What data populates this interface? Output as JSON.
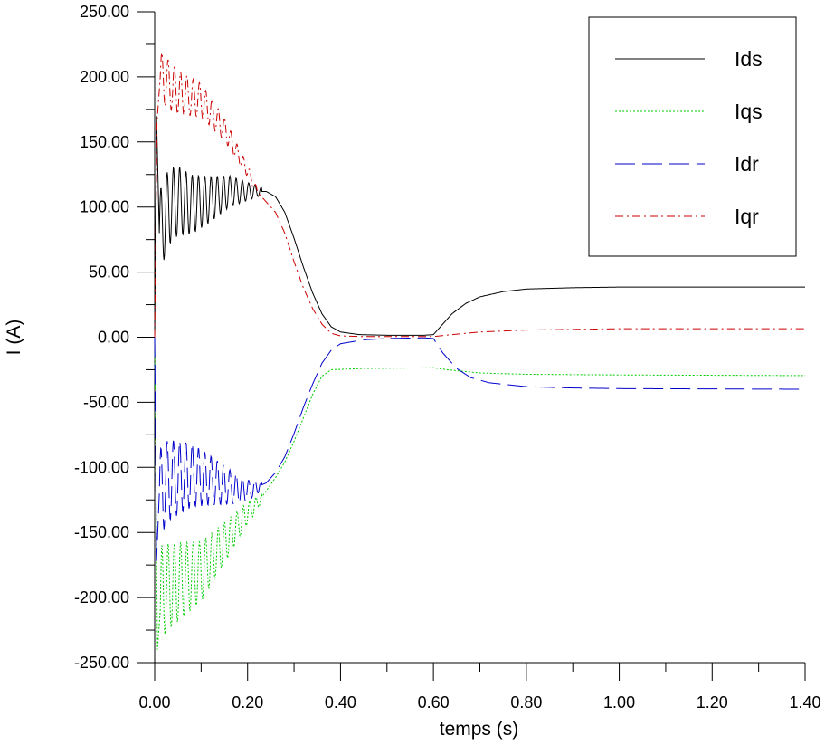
{
  "chart_data": {
    "type": "line",
    "xlabel": "temps (s)",
    "ylabel": "I (A)",
    "xlim": [
      0,
      1.4
    ],
    "ylim": [
      -250,
      250
    ],
    "grid": false,
    "legend_position": "top-right",
    "x_ticks": [
      "0.00",
      "0.20",
      "0.40",
      "0.60",
      "0.80",
      "1.00",
      "1.20",
      "1.40"
    ],
    "y_ticks": [
      "250.00",
      "200.00",
      "150.00",
      "100.00",
      "50.00",
      "0.00",
      "-50.00",
      "-100.00",
      "-150.00",
      "-200.00",
      "-250.00"
    ],
    "series": [
      {
        "name": "Ids",
        "color": "#000000",
        "dash": "solid",
        "points": [
          [
            0,
            0
          ],
          [
            0.004,
            170
          ],
          [
            0.01,
            80
          ],
          [
            0.03,
            100
          ],
          [
            0.05,
            105
          ],
          [
            0.08,
            102
          ],
          [
            0.12,
            106
          ],
          [
            0.16,
            112
          ],
          [
            0.2,
            112
          ],
          [
            0.24,
            112
          ],
          [
            0.26,
            108
          ],
          [
            0.28,
            96
          ],
          [
            0.3,
            76
          ],
          [
            0.32,
            54
          ],
          [
            0.34,
            34
          ],
          [
            0.36,
            18
          ],
          [
            0.38,
            8
          ],
          [
            0.4,
            4
          ],
          [
            0.44,
            2
          ],
          [
            0.5,
            1.5
          ],
          [
            0.58,
            1.5
          ],
          [
            0.6,
            2
          ],
          [
            0.62,
            10
          ],
          [
            0.64,
            18
          ],
          [
            0.67,
            26
          ],
          [
            0.7,
            31
          ],
          [
            0.75,
            35
          ],
          [
            0.8,
            37
          ],
          [
            0.9,
            38
          ],
          [
            1.0,
            38.5
          ],
          [
            1.4,
            38.5
          ]
        ],
        "oscillation": {
          "from": 0.01,
          "to": 0.23,
          "period": 0.0135,
          "amp_start": 32,
          "amp_end": 3
        }
      },
      {
        "name": "Iqs",
        "color": "#00cc00",
        "dash": "dotted",
        "points": [
          [
            0,
            0
          ],
          [
            0.006,
            -240
          ],
          [
            0.015,
            -195
          ],
          [
            0.05,
            -188
          ],
          [
            0.1,
            -180
          ],
          [
            0.15,
            -158
          ],
          [
            0.2,
            -135
          ],
          [
            0.22,
            -128
          ],
          [
            0.24,
            -118
          ],
          [
            0.26,
            -108
          ],
          [
            0.28,
            -96
          ],
          [
            0.3,
            -80
          ],
          [
            0.32,
            -62
          ],
          [
            0.34,
            -44
          ],
          [
            0.36,
            -30
          ],
          [
            0.38,
            -25
          ],
          [
            0.45,
            -24
          ],
          [
            0.6,
            -23.5
          ],
          [
            0.63,
            -25
          ],
          [
            0.7,
            -27.5
          ],
          [
            0.8,
            -28.5
          ],
          [
            1.0,
            -29
          ],
          [
            1.4,
            -29.5
          ]
        ],
        "oscillation": {
          "from": 0.012,
          "to": 0.23,
          "period": 0.0135,
          "amp_start": 36,
          "amp_end": 4
        }
      },
      {
        "name": "Idr",
        "color": "#0000cc",
        "dash": "longdash",
        "points": [
          [
            0,
            0
          ],
          [
            0.004,
            -172
          ],
          [
            0.01,
            -120
          ],
          [
            0.03,
            -110
          ],
          [
            0.05,
            -108
          ],
          [
            0.08,
            -106
          ],
          [
            0.12,
            -110
          ],
          [
            0.16,
            -115
          ],
          [
            0.2,
            -118
          ],
          [
            0.24,
            -112
          ],
          [
            0.26,
            -104
          ],
          [
            0.28,
            -92
          ],
          [
            0.3,
            -74
          ],
          [
            0.32,
            -54
          ],
          [
            0.34,
            -36
          ],
          [
            0.36,
            -20
          ],
          [
            0.38,
            -10
          ],
          [
            0.4,
            -5
          ],
          [
            0.45,
            -2
          ],
          [
            0.5,
            -1
          ],
          [
            0.58,
            -0.5
          ],
          [
            0.6,
            -1
          ],
          [
            0.62,
            -12
          ],
          [
            0.65,
            -24
          ],
          [
            0.68,
            -31
          ],
          [
            0.72,
            -35
          ],
          [
            0.8,
            -38
          ],
          [
            0.9,
            -39
          ],
          [
            1.0,
            -39.5
          ],
          [
            1.4,
            -40
          ]
        ],
        "oscillation": {
          "from": 0.01,
          "to": 0.23,
          "period": 0.0135,
          "amp_start": 34,
          "amp_end": 4
        }
      },
      {
        "name": "Iqr",
        "color": "#cc0000",
        "dash": "dashdot",
        "points": [
          [
            0,
            0
          ],
          [
            0.005,
            165
          ],
          [
            0.012,
            200
          ],
          [
            0.05,
            188
          ],
          [
            0.1,
            182
          ],
          [
            0.15,
            160
          ],
          [
            0.18,
            140
          ],
          [
            0.2,
            128
          ],
          [
            0.22,
            112
          ],
          [
            0.24,
            104
          ],
          [
            0.26,
            96
          ],
          [
            0.28,
            80
          ],
          [
            0.3,
            58
          ],
          [
            0.32,
            38
          ],
          [
            0.34,
            22
          ],
          [
            0.36,
            10
          ],
          [
            0.38,
            3
          ],
          [
            0.4,
            1
          ],
          [
            0.45,
            0.5
          ],
          [
            0.6,
            0.5
          ],
          [
            0.64,
            2
          ],
          [
            0.7,
            4
          ],
          [
            0.8,
            5.5
          ],
          [
            0.9,
            6
          ],
          [
            1.0,
            6.5
          ],
          [
            1.4,
            6.5
          ]
        ],
        "oscillation": {
          "from": 0.012,
          "to": 0.22,
          "period": 0.0135,
          "amp_start": 20,
          "amp_end": 3
        }
      }
    ]
  }
}
